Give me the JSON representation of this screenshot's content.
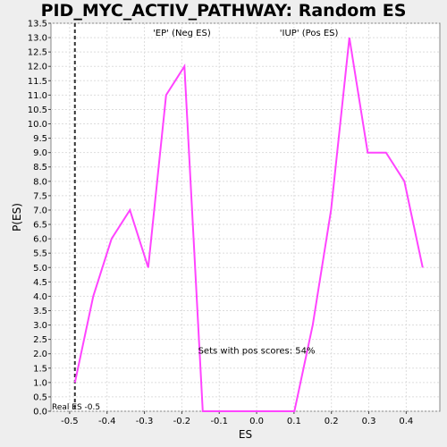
{
  "title": "PID_MYC_ACTIV_PATHWAY: Random ES distribution",
  "chart_data": {
    "type": "line",
    "title": "PID_MYC_ACTIV_PATHWAY: Random ES distribution",
    "xlabel": "ES",
    "ylabel": "P(ES)",
    "xlim": [
      -0.55,
      0.49
    ],
    "ylim": [
      0,
      13.5
    ],
    "x_ticks": [
      "-0.5",
      "-0.4",
      "-0.3",
      "-0.2",
      "-0.1",
      "0.0",
      "0.1",
      "0.2",
      "0.3",
      "0.4"
    ],
    "y_ticks": [
      "0.0",
      "0.5",
      "1.0",
      "1.5",
      "2.0",
      "2.5",
      "3.0",
      "3.5",
      "4.0",
      "4.5",
      "5.0",
      "5.5",
      "6.0",
      "6.5",
      "7.0",
      "7.5",
      "8.0",
      "8.5",
      "9.0",
      "9.5",
      "10.0",
      "10.5",
      "11.0",
      "11.5",
      "12.0",
      "12.5",
      "13.0",
      "13.5"
    ],
    "grid": true,
    "series": [
      {
        "color": "#ff44ff",
        "x": [
          -0.486,
          -0.437,
          -0.388,
          -0.339,
          -0.29,
          -0.242,
          -0.193,
          -0.144,
          -0.095,
          -0.046,
          0.003,
          0.052,
          0.101,
          0.15,
          0.199,
          0.248,
          0.297,
          0.346,
          0.395,
          0.444
        ],
        "y": [
          1.0,
          4.0,
          6.0,
          7.0,
          5.0,
          11.0,
          12.0,
          0.0,
          0.0,
          0.0,
          0.0,
          0.0,
          0.0,
          3.0,
          7.0,
          13.0,
          9.0,
          9.0,
          8.0,
          5.0
        ]
      }
    ],
    "real_es": -0.486,
    "annotations": {
      "neg_label": "'EP' (Neg ES)",
      "neg_color": "#3333cc",
      "pos_label": "'IUP' (Pos ES)",
      "pos_color": "#ff3333",
      "pos_scores": "Sets with pos scores: 54%",
      "real_es_label": "Real ES -0.5"
    }
  }
}
